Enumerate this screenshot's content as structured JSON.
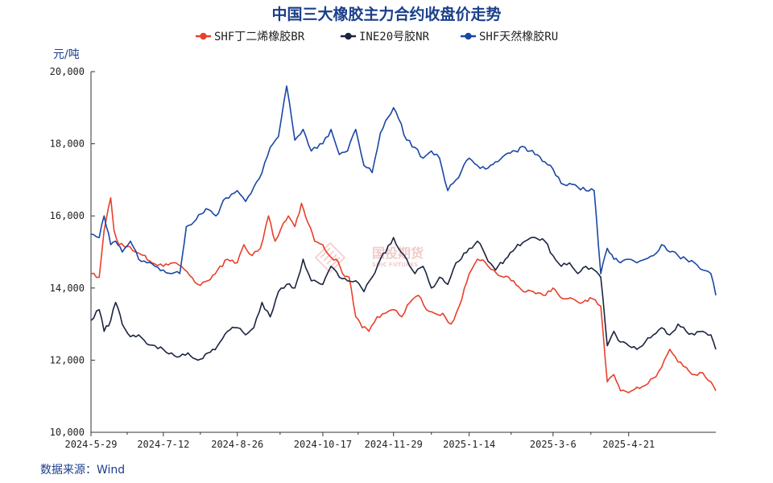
{
  "chart_data": {
    "type": "line",
    "title": "中国三大橡胶主力合约收盘价走势",
    "ylabel": "元/吨",
    "ylim": [
      10000,
      20000
    ],
    "yticks": [
      10000,
      12000,
      14000,
      16000,
      18000,
      20000
    ],
    "ytick_labels": [
      "10,000",
      "12,000",
      "14,000",
      "16,000",
      "18,000",
      "20,000"
    ],
    "xlim": [
      "2024-05-29",
      "2025-06-13"
    ],
    "xtick_labels": [
      "2024-5-29",
      "2024-7-12",
      "2024-8-26",
      "2024-10-17",
      "2024-11-29",
      "2025-1-14",
      "2025-3-6",
      "2025-4-21"
    ],
    "xtick_dates": [
      "2024-05-29",
      "2024-07-12",
      "2024-08-26",
      "2024-10-17",
      "2024-11-29",
      "2025-01-14",
      "2025-03-06",
      "2025-04-21"
    ],
    "source": "数据来源：Wind",
    "watermark": "国投期货",
    "watermark_en": "SDIC FUTURES",
    "series": [
      {
        "name": "SHF丁二烯橡胶BR",
        "color": "#e8402a",
        "x": [
          "2024-05-29",
          "2024-06-03",
          "2024-06-06",
          "2024-06-10",
          "2024-06-12",
          "2024-06-15",
          "2024-06-20",
          "2024-06-25",
          "2024-07-01",
          "2024-07-05",
          "2024-07-12",
          "2024-07-18",
          "2024-07-23",
          "2024-07-28",
          "2024-08-02",
          "2024-08-08",
          "2024-08-14",
          "2024-08-20",
          "2024-08-26",
          "2024-08-30",
          "2024-09-04",
          "2024-09-09",
          "2024-09-14",
          "2024-09-18",
          "2024-09-23",
          "2024-09-26",
          "2024-09-30",
          "2024-10-04",
          "2024-10-08",
          "2024-10-12",
          "2024-10-17",
          "2024-10-21",
          "2024-10-25",
          "2024-10-29",
          "2024-11-02",
          "2024-11-06",
          "2024-11-10",
          "2024-11-14",
          "2024-11-19",
          "2024-11-24",
          "2024-11-29",
          "2024-12-04",
          "2024-12-09",
          "2024-12-14",
          "2024-12-19",
          "2024-12-24",
          "2024-12-29",
          "2025-01-03",
          "2025-01-08",
          "2025-01-14",
          "2025-01-19",
          "2025-01-24",
          "2025-01-29",
          "2025-02-04",
          "2025-02-10",
          "2025-02-16",
          "2025-02-22",
          "2025-02-28",
          "2025-03-06",
          "2025-03-12",
          "2025-03-18",
          "2025-03-24",
          "2025-03-30",
          "2025-04-04",
          "2025-04-08",
          "2025-04-12",
          "2025-04-16",
          "2025-04-21",
          "2025-04-26",
          "2025-05-01",
          "2025-05-06",
          "2025-05-11",
          "2025-05-16",
          "2025-05-21",
          "2025-05-26",
          "2025-05-31",
          "2025-06-05",
          "2025-06-10",
          "2025-06-13"
        ],
        "values": [
          14400,
          14300,
          15600,
          16500,
          15600,
          15200,
          15150,
          15000,
          14900,
          14700,
          14600,
          14700,
          14600,
          14350,
          14100,
          14200,
          14500,
          14800,
          14700,
          15200,
          14900,
          15100,
          16000,
          15300,
          15800,
          16000,
          15700,
          16350,
          15800,
          15300,
          15200,
          14900,
          14800,
          14400,
          14300,
          13200,
          12900,
          12800,
          13200,
          13300,
          13400,
          13200,
          13600,
          13800,
          13400,
          13300,
          13300,
          13000,
          13500,
          14400,
          14800,
          14700,
          14500,
          14300,
          14200,
          13900,
          13900,
          13800,
          14000,
          13700,
          13700,
          13600,
          13700,
          13500,
          11400,
          11600,
          11150,
          11100,
          11250,
          11300,
          11500,
          11800,
          12300,
          11950,
          11800,
          11600,
          11650,
          11400,
          11150
        ]
      },
      {
        "name": "INE20号胶NR",
        "color": "#1c2440",
        "x": [
          "2024-05-29",
          "2024-06-03",
          "2024-06-06",
          "2024-06-10",
          "2024-06-13",
          "2024-06-17",
          "2024-06-22",
          "2024-06-27",
          "2024-07-02",
          "2024-07-07",
          "2024-07-12",
          "2024-07-17",
          "2024-07-22",
          "2024-07-27",
          "2024-08-02",
          "2024-08-08",
          "2024-08-14",
          "2024-08-20",
          "2024-08-26",
          "2024-08-31",
          "2024-09-05",
          "2024-09-10",
          "2024-09-15",
          "2024-09-20",
          "2024-09-25",
          "2024-09-30",
          "2024-10-05",
          "2024-10-10",
          "2024-10-17",
          "2024-10-22",
          "2024-10-27",
          "2024-11-01",
          "2024-11-06",
          "2024-11-11",
          "2024-11-16",
          "2024-11-21",
          "2024-11-29",
          "2024-12-02",
          "2024-12-07",
          "2024-12-12",
          "2024-12-17",
          "2024-12-22",
          "2024-12-27",
          "2025-01-01",
          "2025-01-06",
          "2025-01-14",
          "2025-01-19",
          "2025-01-24",
          "2025-01-30",
          "2025-02-05",
          "2025-02-11",
          "2025-02-17",
          "2025-02-23",
          "2025-03-01",
          "2025-03-06",
          "2025-03-11",
          "2025-03-16",
          "2025-03-21",
          "2025-03-26",
          "2025-03-31",
          "2025-04-04",
          "2025-04-08",
          "2025-04-12",
          "2025-04-16",
          "2025-04-21",
          "2025-04-26",
          "2025-05-01",
          "2025-05-06",
          "2025-05-11",
          "2025-05-16",
          "2025-05-21",
          "2025-05-26",
          "2025-05-31",
          "2025-06-05",
          "2025-06-10",
          "2025-06-13"
        ],
        "values": [
          13100,
          13400,
          12800,
          13100,
          13600,
          13000,
          12650,
          12700,
          12450,
          12400,
          12300,
          12200,
          12100,
          12200,
          12000,
          12200,
          12400,
          12800,
          12900,
          12700,
          12900,
          13600,
          13200,
          13900,
          14100,
          14000,
          14800,
          14200,
          14100,
          14600,
          14300,
          14200,
          14200,
          13900,
          14300,
          14800,
          15400,
          15100,
          14800,
          14400,
          14600,
          14000,
          14300,
          14100,
          14700,
          15100,
          15300,
          14900,
          14500,
          14800,
          15100,
          15300,
          15400,
          15300,
          14900,
          14600,
          14700,
          14400,
          14600,
          14500,
          14300,
          12400,
          12800,
          12500,
          12400,
          12300,
          12500,
          12700,
          12900,
          12700,
          13000,
          12800,
          12700,
          12800,
          12700,
          12300
        ]
      },
      {
        "name": "SHF天然橡胶RU",
        "color": "#1a47a5",
        "x": [
          "2024-05-29",
          "2024-06-03",
          "2024-06-06",
          "2024-06-10",
          "2024-06-13",
          "2024-06-17",
          "2024-06-22",
          "2024-06-27",
          "2024-07-02",
          "2024-07-07",
          "2024-07-12",
          "2024-07-17",
          "2024-07-22",
          "2024-07-26",
          "2024-08-01",
          "2024-08-07",
          "2024-08-13",
          "2024-08-19",
          "2024-08-26",
          "2024-08-31",
          "2024-09-05",
          "2024-09-10",
          "2024-09-15",
          "2024-09-20",
          "2024-09-25",
          "2024-09-30",
          "2024-10-05",
          "2024-10-10",
          "2024-10-17",
          "2024-10-22",
          "2024-10-27",
          "2024-11-01",
          "2024-11-06",
          "2024-11-11",
          "2024-11-16",
          "2024-11-21",
          "2024-11-29",
          "2024-12-02",
          "2024-12-07",
          "2024-12-12",
          "2024-12-17",
          "2024-12-22",
          "2024-12-27",
          "2025-01-01",
          "2025-01-06",
          "2025-01-14",
          "2025-01-19",
          "2025-01-24",
          "2025-01-30",
          "2025-02-05",
          "2025-02-11",
          "2025-02-17",
          "2025-02-23",
          "2025-03-01",
          "2025-03-06",
          "2025-03-11",
          "2025-03-16",
          "2025-03-21",
          "2025-03-26",
          "2025-03-31",
          "2025-04-04",
          "2025-04-08",
          "2025-04-12",
          "2025-04-16",
          "2025-04-21",
          "2025-04-26",
          "2025-05-01",
          "2025-05-06",
          "2025-05-11",
          "2025-05-16",
          "2025-05-21",
          "2025-05-26",
          "2025-05-31",
          "2025-06-05",
          "2025-06-10",
          "2025-06-13"
        ],
        "values": [
          15500,
          15400,
          16000,
          15200,
          15300,
          15000,
          15300,
          14800,
          14700,
          14600,
          14500,
          14400,
          14400,
          15700,
          15900,
          16200,
          16000,
          16500,
          16700,
          16400,
          16800,
          17200,
          17900,
          18200,
          19600,
          18100,
          18400,
          17800,
          18000,
          18400,
          17700,
          17800,
          18400,
          17400,
          17200,
          18300,
          19000,
          18700,
          18100,
          17900,
          17600,
          17800,
          17600,
          16700,
          17000,
          17600,
          17400,
          17300,
          17500,
          17700,
          17800,
          17900,
          17700,
          17500,
          17300,
          16900,
          16900,
          16800,
          16700,
          16700,
          14400,
          15100,
          14800,
          14700,
          14800,
          14700,
          14800,
          14900,
          15200,
          15000,
          14900,
          14800,
          14700,
          14500,
          14400,
          13800
        ]
      }
    ]
  }
}
